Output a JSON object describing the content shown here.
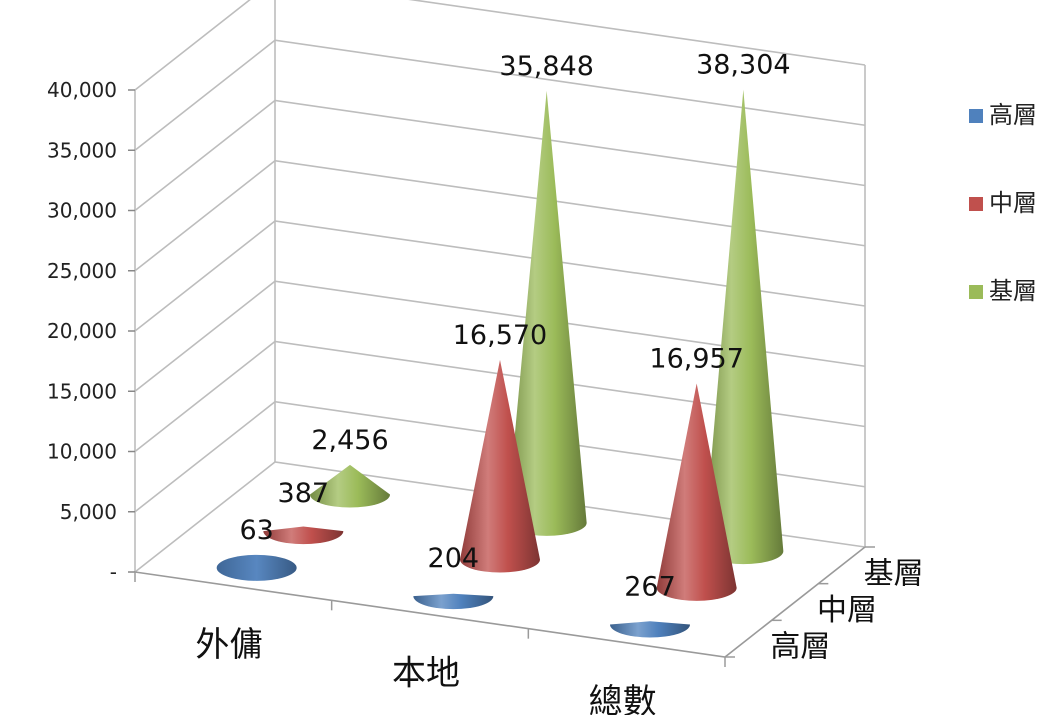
{
  "chart_data": {
    "type": "bar",
    "style": "3d-cone",
    "categories": [
      "外傭",
      "本地",
      "總數"
    ],
    "series": [
      {
        "name": "高層",
        "color": "#4F81BD",
        "values": [
          63,
          204,
          267
        ]
      },
      {
        "name": "中層",
        "color": "#C0504D",
        "values": [
          387,
          16570,
          16957
        ]
      },
      {
        "name": "基層",
        "color": "#9BBB59",
        "values": [
          2456,
          35848,
          38304
        ]
      }
    ],
    "data_labels": [
      [
        "63",
        "204",
        "267"
      ],
      [
        "387",
        "16,570",
        "16,957"
      ],
      [
        "2,456",
        "35,848",
        "38,304"
      ]
    ],
    "depth_labels": [
      "高層",
      "中層",
      "基層"
    ],
    "y_ticks": [
      "-",
      "5,000",
      "10,000",
      "15,000",
      "20,000",
      "25,000",
      "30,000",
      "35,000",
      "40,000"
    ],
    "ylim": [
      0,
      40000
    ],
    "grid": true,
    "legend_position": "right"
  }
}
